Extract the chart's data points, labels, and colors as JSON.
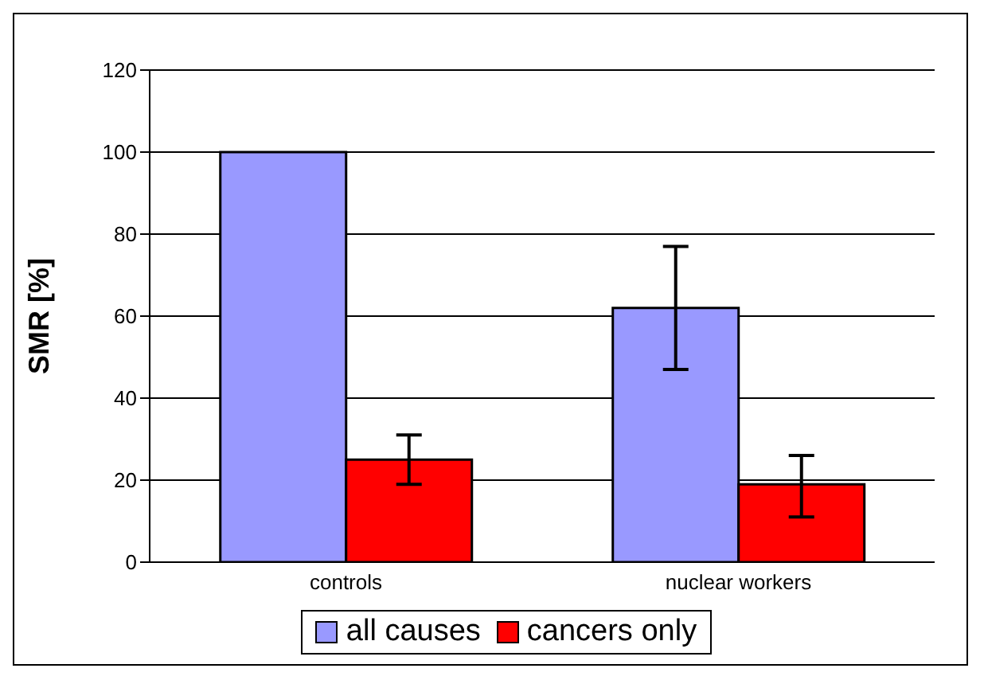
{
  "chart_data": {
    "type": "bar",
    "ylabel": "SMR [%]",
    "categories": [
      "controls",
      "nuclear workers"
    ],
    "series": [
      {
        "name": "all causes",
        "color": "#9999ff",
        "values": [
          100,
          62
        ],
        "errors": [
          null,
          [
            47,
            77
          ]
        ]
      },
      {
        "name": "cancers only",
        "color": "#ff0000",
        "values": [
          25,
          19
        ],
        "errors": [
          [
            19,
            31
          ],
          [
            11,
            26
          ]
        ]
      }
    ],
    "ylim": [
      0,
      120
    ],
    "yticks": [
      0,
      20,
      40,
      60,
      80,
      100,
      120
    ],
    "grid": "y",
    "legend": "bottom"
  }
}
